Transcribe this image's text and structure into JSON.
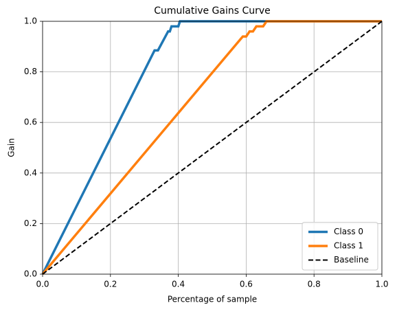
{
  "chart_data": {
    "type": "line",
    "title": "Cumulative Gains Curve",
    "xlabel": "Percentage of sample",
    "ylabel": "Gain",
    "xlim": [
      0,
      1
    ],
    "ylim": [
      0,
      1
    ],
    "xticks": [
      {
        "value": 0,
        "label": "0.0"
      },
      0.2,
      0.4,
      0.6,
      0.8,
      {
        "value": 1,
        "label": "1.0"
      }
    ],
    "yticks": [
      {
        "value": 0,
        "label": "0.0"
      },
      0.2,
      0.4,
      0.6,
      0.8,
      {
        "value": 1,
        "label": "1.0"
      }
    ],
    "grid": true,
    "legend": "lower right",
    "series": [
      {
        "name": "Class 0",
        "color": "#1f77b4",
        "dashed": false,
        "x": [
          0,
          0.33,
          0.34,
          0.37,
          0.375,
          0.38,
          0.4,
          0.405,
          1
        ],
        "values": [
          0,
          0.885,
          0.885,
          0.96,
          0.96,
          0.98,
          0.98,
          1,
          1
        ]
      },
      {
        "name": "Class 1",
        "color": "#ff7f0e",
        "dashed": false,
        "x": [
          0,
          0.59,
          0.6,
          0.61,
          0.62,
          0.63,
          0.65,
          0.66,
          1
        ],
        "values": [
          0,
          0.94,
          0.94,
          0.96,
          0.96,
          0.98,
          0.98,
          1,
          1
        ]
      },
      {
        "name": "Baseline",
        "color": "#000000",
        "dashed": true,
        "x": [
          0,
          1
        ],
        "values": [
          0,
          1
        ]
      }
    ]
  }
}
